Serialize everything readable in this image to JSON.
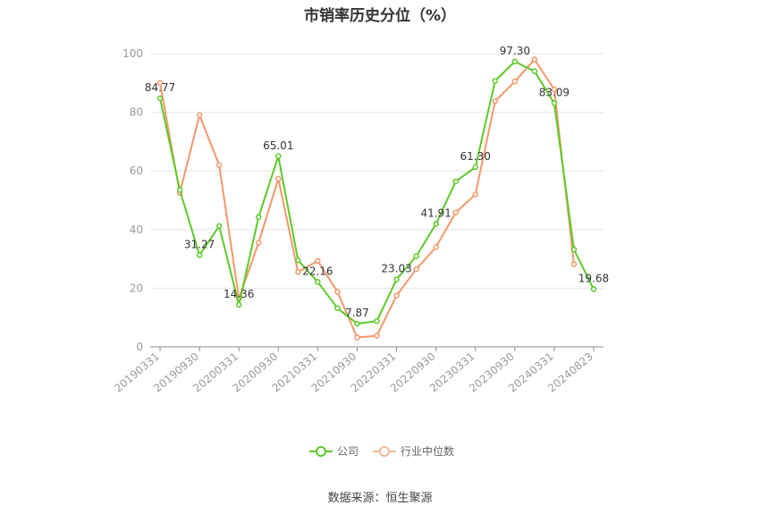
{
  "chart_data": {
    "type": "line",
    "title": "市销率历史分位（%）",
    "x": [
      "20190331",
      "20190630",
      "20190930",
      "20191231",
      "20200331",
      "20200630",
      "20200930",
      "20201231",
      "20210331",
      "20210630",
      "20210930",
      "20211231",
      "20220331",
      "20220630",
      "20220930",
      "20221231",
      "20230331",
      "20230630",
      "20230930",
      "20231231",
      "20240331",
      "20240630",
      "20240823"
    ],
    "x_tick_labels": [
      "20190331",
      "20190930",
      "20200331",
      "20200930",
      "20210331",
      "20210930",
      "20220331",
      "20220930",
      "20230331",
      "20230930",
      "20240331",
      "20240823"
    ],
    "y_ticks": [
      0,
      20,
      40,
      60,
      80,
      100
    ],
    "ylim": [
      0,
      100
    ],
    "grid": true,
    "legend_position": "bottom",
    "series": [
      {
        "name": "公司",
        "color": "#5cc928",
        "values": [
          84.77,
          53.5,
          31.27,
          41.2,
          14.36,
          44.3,
          65.01,
          29.5,
          22.16,
          13.2,
          7.87,
          8.8,
          23.03,
          30.9,
          41.91,
          56.4,
          61.3,
          90.7,
          97.3,
          94.0,
          83.09,
          33.2,
          19.68
        ],
        "labels": {
          "0": "84.77",
          "2": "31.27",
          "4": "14.36",
          "6": "65.01",
          "8": "22.16",
          "10": "7.87",
          "12": "23.03",
          "14": "41.91",
          "16": "61.30",
          "18": "97.30",
          "20": "83.09",
          "22": "19.68"
        }
      },
      {
        "name": "行业中位数",
        "color": "#f5976a",
        "values": [
          90.0,
          52.5,
          79.0,
          62.0,
          16.5,
          35.5,
          57.3,
          25.5,
          29.3,
          18.8,
          3.2,
          3.8,
          17.5,
          26.5,
          34.0,
          45.8,
          52.0,
          83.8,
          90.5,
          98.0,
          87.8,
          28.2,
          null
        ]
      }
    ]
  },
  "legend": {
    "company": "公司",
    "industry": "行业中位数"
  },
  "source": "数据来源：恒生聚源"
}
